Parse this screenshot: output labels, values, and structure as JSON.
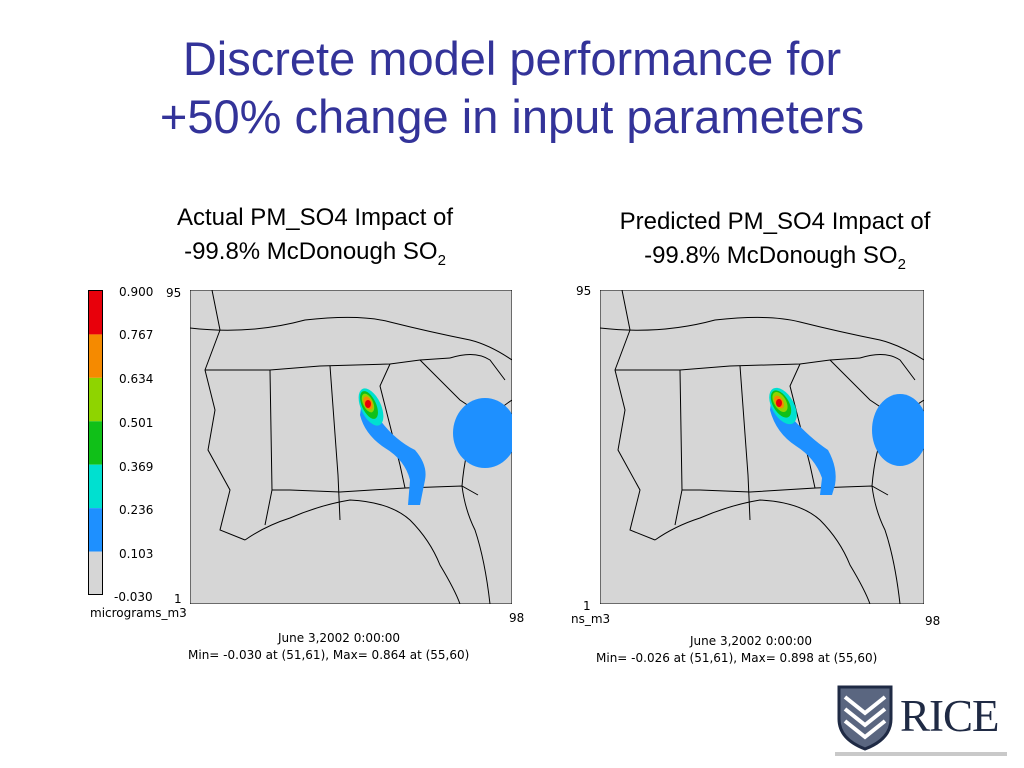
{
  "slide": {
    "title_line1": "Discrete model performance for",
    "title_line2": "+50% change in input parameters"
  },
  "left_panel": {
    "caption_line1": "Actual PM_SO4 Impact of",
    "caption_line2": "-99.8% McDonough SO",
    "caption_sub": "2",
    "colorbar_labels": [
      "0.900",
      "0.767",
      "0.634",
      "0.501",
      "0.369",
      "0.236",
      "0.103",
      "-0.030"
    ],
    "colorbar_colors": [
      "#e8000b",
      "#f58a00",
      "#8fd400",
      "#10c018",
      "#00e0d0",
      "#1e90ff",
      "#d6d6d6"
    ],
    "y_top": "95",
    "y_bottom": "1",
    "x_right": "98",
    "units": "micrograms_m3",
    "date": "June 3,2002 0:00:00",
    "minmax": "Min=  -0.030 at (51,61), Max=   0.864 at (55,60)"
  },
  "right_panel": {
    "caption_line1": "Predicted PM_SO4 Impact of",
    "caption_line2": "-99.8% McDonough SO",
    "caption_sub": "2",
    "y_top": "95",
    "y_bottom": "1",
    "x_right": "98",
    "units": "ns_m3",
    "date": "June 3,2002 0:00:00",
    "minmax": "Min=  -0.026 at (51,61), Max=   0.898 at (55,60)"
  },
  "logo": {
    "text": "RICE",
    "shield_color": "#1f2a44"
  },
  "colors": {
    "title": "#333399",
    "map_background": "#d6d6d6",
    "plume_blue": "#1e90ff"
  }
}
